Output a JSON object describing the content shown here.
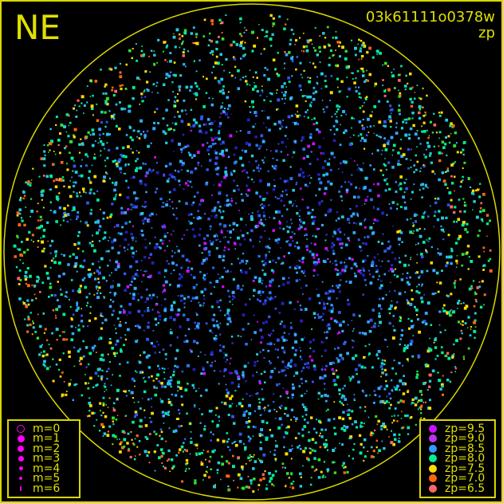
{
  "title_direction": "NE",
  "frame_id": "03k61111o0378w",
  "color_key": "zp",
  "colors": {
    "frame": "#d8d800",
    "background": "#000000",
    "magnitude_symbol": "#ff00ff"
  },
  "magnitude_legend": [
    {
      "label": "m=0",
      "style": "ring"
    },
    {
      "label": "m=1"
    },
    {
      "label": "m=2"
    },
    {
      "label": "m=3"
    },
    {
      "label": "m=4"
    },
    {
      "label": "m=5"
    },
    {
      "label": "m=6"
    }
  ],
  "zp_legend": [
    {
      "label": "zp=9.5",
      "color": "#cc11ff"
    },
    {
      "label": "zp=9.0",
      "color": "#bb33ee"
    },
    {
      "label": "zp=8.5",
      "color": "#3399ff"
    },
    {
      "label": "zp=8.0",
      "color": "#00ee99"
    },
    {
      "label": "zp=7.5",
      "color": "#ffdd00"
    },
    {
      "label": "zp=7.0",
      "color": "#ff6611"
    },
    {
      "label": "zp=6.5",
      "color": "#ff6666"
    }
  ]
}
